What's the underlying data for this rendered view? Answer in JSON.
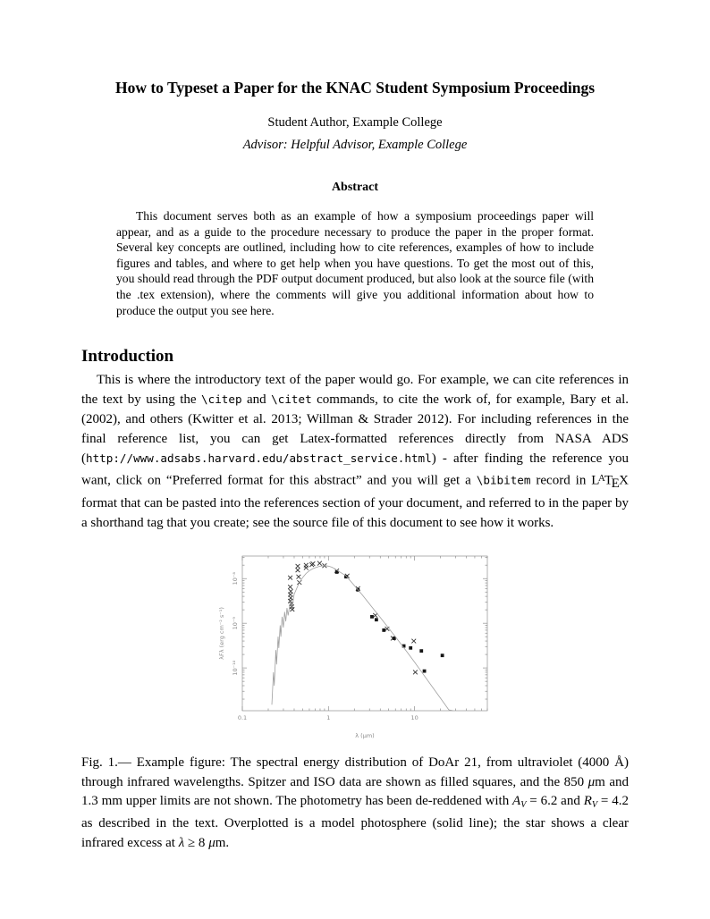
{
  "paper": {
    "title": "How to Typeset a Paper for the KNAC Student Symposium Proceedings",
    "author": "Student Author, Example College",
    "advisor": "Advisor: Helpful Advisor, Example College",
    "abstract_heading": "Abstract",
    "abstract_text": "This document serves both as an example of how a symposium proceedings paper will appear, and as a guide to the procedure necessary to produce the paper in the proper format. Several key concepts are outlined, including how to cite references, examples of how to include figures and tables, and where to get help when you have questions. To get the most out of this, you should read through the PDF output document produced, but also look at the source file (with the .tex extension), where the comments will give you additional information about how to produce the output you see here.",
    "section_heading": "Introduction",
    "intro_segments": [
      {
        "text": "This is where the introductory text of the paper would go. For example, we can cite references in the text by using the "
      },
      {
        "text": "\\citep",
        "style": "mono"
      },
      {
        "text": " and "
      },
      {
        "text": "\\citet",
        "style": "mono"
      },
      {
        "text": " commands, to cite the work of, for example, Bary et al. (2002), and others (Kwitter et al. 2013; Willman & Strader 2012). For including references in the final reference list, you can get Latex-formatted references directly from NASA ADS ("
      },
      {
        "text": "http://www.adsabs.harvard.edu/abstract_service.html",
        "style": "mono"
      },
      {
        "text": ") - after finding the reference you want, click on “Preferred format for this abstract” and you will get a "
      },
      {
        "text": "\\bibitem",
        "style": "mono"
      },
      {
        "text": " record in "
      },
      {
        "text": "L"
      },
      {
        "text": "A",
        "style": "latex-a"
      },
      {
        "text": "T"
      },
      {
        "text": "E",
        "style": "latex-e"
      },
      {
        "text": "X"
      },
      {
        "text": " format that can be pasted into the references section of your document, and referred to in the paper by a shorthand tag that you create; see the source file of this document to see how it works."
      }
    ],
    "caption_segments": [
      {
        "text": "Fig. 1.— Example figure: The spectral energy distribution of DoAr 21, from ultraviolet (4000 Å) through infrared wavelengths. Spitzer and ISO data are shown as filled squares, and the 850 "
      },
      {
        "text": "μ",
        "style": "italic"
      },
      {
        "text": "m and 1.3 mm upper limits are not shown. The photometry has been de-reddened with "
      },
      {
        "text": "A",
        "style": "italic"
      },
      {
        "text": "V",
        "style": "sub"
      },
      {
        "text": " = 6.2 and "
      },
      {
        "text": "R",
        "style": "italic"
      },
      {
        "text": "V",
        "style": "sub"
      },
      {
        "text": " = 4.2 as described in the text. Overplotted is a model photosphere (solid line); the star shows a clear infrared excess at "
      },
      {
        "text": "λ",
        "style": "italic"
      },
      {
        "text": " ≥ 8 "
      },
      {
        "text": "μ",
        "style": "italic"
      },
      {
        "text": "m."
      }
    ]
  },
  "chart_data": {
    "type": "scatter",
    "title": "",
    "xlabel": "λ (μm)",
    "ylabel": "λFλ (erg cm⁻² s⁻¹)",
    "log_x": true,
    "log_y": true,
    "xlim": [
      0.1,
      70
    ],
    "ylim": [
      1.1e-11,
      3.2e-08
    ],
    "xticks": [
      0.1,
      1,
      10
    ],
    "xtick_labels": [
      "0.1",
      "1",
      "10"
    ],
    "yticks": [
      1e-08,
      1e-09,
      1e-10
    ],
    "ytick_labels": [
      "10⁻⁸",
      "10⁻⁹",
      "10⁻¹⁰"
    ],
    "grid": false,
    "legend": "none",
    "colors": {
      "axis": "#8f8f8f",
      "tick_text": "#8a8a8a",
      "cross": "#333333",
      "square": "#161616",
      "line": "#a0a0a0"
    },
    "series": [
      {
        "name": "De-reddened photometry (crosses)",
        "marker": "x",
        "points": [
          [
            0.36,
            1.05e-08
          ],
          [
            0.36,
            6.5e-09
          ],
          [
            0.365,
            5.2e-09
          ],
          [
            0.36,
            4.4e-09
          ],
          [
            0.365,
            3.7e-09
          ],
          [
            0.36,
            3.15e-09
          ],
          [
            0.37,
            2.7e-09
          ],
          [
            0.375,
            2.35e-09
          ],
          [
            0.38,
            2.05e-09
          ],
          [
            0.44,
            1.9e-08
          ],
          [
            0.44,
            1.55e-08
          ],
          [
            0.45,
            1.1e-08
          ],
          [
            0.46,
            8.2e-09
          ],
          [
            0.55,
            2e-08
          ],
          [
            0.55,
            1.75e-08
          ],
          [
            0.64,
            2.05e-08
          ],
          [
            0.66,
            2.15e-08
          ],
          [
            0.79,
            2.2e-08
          ],
          [
            0.9,
            1.95e-08
          ],
          [
            1.25,
            1.5e-08
          ],
          [
            1.65,
            1.15e-08
          ],
          [
            2.2,
            6e-09
          ],
          [
            3.5,
            1.5e-09
          ],
          [
            4.8,
            7.5e-10
          ],
          [
            5.6,
            4.6e-10
          ],
          [
            9.8,
            4e-10
          ],
          [
            10.2,
            8e-11
          ]
        ]
      },
      {
        "name": "Spitzer and ISO data (filled squares)",
        "marker": "square",
        "points": [
          [
            1.25,
            1.4e-08
          ],
          [
            1.6,
            1.1e-08
          ],
          [
            2.2,
            5.6e-09
          ],
          [
            3.2,
            1.4e-09
          ],
          [
            3.6,
            1.2e-09
          ],
          [
            4.4,
            7e-10
          ],
          [
            5.8,
            4.6e-10
          ],
          [
            7.5,
            3.1e-10
          ],
          [
            9.0,
            2.8e-10
          ],
          [
            12,
            2.4e-10
          ],
          [
            13,
            8.5e-11
          ],
          [
            21,
            1.9e-10
          ]
        ]
      },
      {
        "name": "Model photosphere (solid line)",
        "marker": "line",
        "points": [
          [
            0.22,
            1.5e-11
          ],
          [
            0.23,
            8e-11
          ],
          [
            0.235,
            4e-11
          ],
          [
            0.245,
            2.5e-10
          ],
          [
            0.25,
            1.2e-10
          ],
          [
            0.26,
            5e-10
          ],
          [
            0.265,
            2.8e-10
          ],
          [
            0.275,
            9e-10
          ],
          [
            0.28,
            5e-10
          ],
          [
            0.29,
            1.4e-09
          ],
          [
            0.3,
            8e-10
          ],
          [
            0.31,
            1.8e-09
          ],
          [
            0.32,
            1.1e-09
          ],
          [
            0.33,
            2.2e-09
          ],
          [
            0.34,
            1.5e-09
          ],
          [
            0.36,
            3e-09
          ],
          [
            0.38,
            2.4e-09
          ],
          [
            0.4,
            4.5e-09
          ],
          [
            0.45,
            7.5e-09
          ],
          [
            0.5,
            1.05e-08
          ],
          [
            0.55,
            1.3e-08
          ],
          [
            0.6,
            1.5e-08
          ],
          [
            0.65,
            1.65e-08
          ],
          [
            0.7,
            1.75e-08
          ],
          [
            0.8,
            1.9e-08
          ],
          [
            0.9,
            1.95e-08
          ],
          [
            1.0,
            1.9e-08
          ],
          [
            1.1,
            1.8e-08
          ],
          [
            1.25,
            1.55e-08
          ],
          [
            1.6,
            1.15e-08
          ],
          [
            2.0,
            7e-09
          ],
          [
            2.5,
            4.2e-09
          ],
          [
            3.2,
            2.3e-09
          ],
          [
            4.0,
            1.35e-09
          ],
          [
            5.0,
            7.8e-10
          ],
          [
            6.3,
            4.4e-10
          ],
          [
            8.0,
            2.4e-10
          ],
          [
            10,
            1.35e-10
          ],
          [
            12.6,
            7.2e-11
          ],
          [
            16,
            3.8e-11
          ],
          [
            20,
            2.1e-11
          ],
          [
            25,
            1.15e-11
          ],
          [
            28,
            8e-12
          ]
        ]
      }
    ]
  }
}
